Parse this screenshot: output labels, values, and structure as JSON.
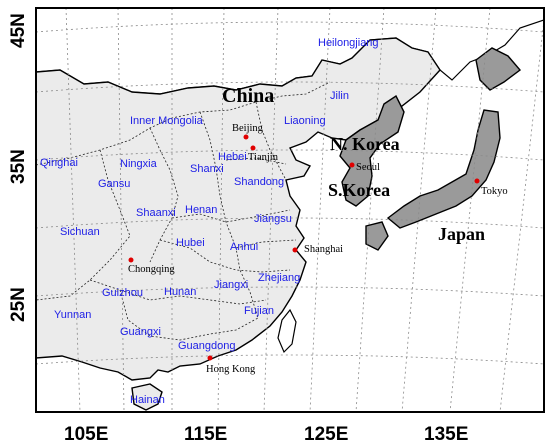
{
  "axes": {
    "x_ticks": [
      "105E",
      "115E",
      "125E",
      "135E"
    ],
    "y_ticks": [
      "45N",
      "35N",
      "25N"
    ]
  },
  "countries": {
    "china": "China",
    "north_korea": "N. Korea",
    "south_korea": "S.Korea",
    "japan": "Japan"
  },
  "provinces": {
    "heilongjiang": "Heilongjiang",
    "jilin": "Jilin",
    "liaoning": "Liaoning",
    "inner_mongolia": "Inner Mongolia",
    "qinghai": "Qinghai",
    "ningxia": "Ningxia",
    "gansu": "Gansu",
    "shanxi": "Shanxi",
    "hebei": "Hebei",
    "shandong": "Shandong",
    "shaanxi": "Shaanxi",
    "henan": "Henan",
    "jiangsu": "Jiangsu",
    "sichuan": "Sichuan",
    "hubei": "Hubei",
    "anhui": "Anhui",
    "zhejiang": "Zhejiang",
    "jiangxi": "Jiangxi",
    "hunan": "Hunan",
    "guizhou": "Guizhou",
    "yunnan": "Yunnan",
    "fujian": "Fujian",
    "guangxi": "Guangxi",
    "guangdong": "Guangdong",
    "hainan": "Hainan"
  },
  "cities": {
    "beijing": "Beijing",
    "tianjin": "Tianjin",
    "seoul": "Seoul",
    "tokyo": "Tokyo",
    "shanghai": "Shanghai",
    "chongqing": "Chongqing",
    "hong_kong": "Hong Kong"
  },
  "colors": {
    "province_label": "#1f20e6",
    "city_marker": "#e00000",
    "china_fill": "#ebebeb",
    "neighbor_fill": "#9a9a9a"
  }
}
